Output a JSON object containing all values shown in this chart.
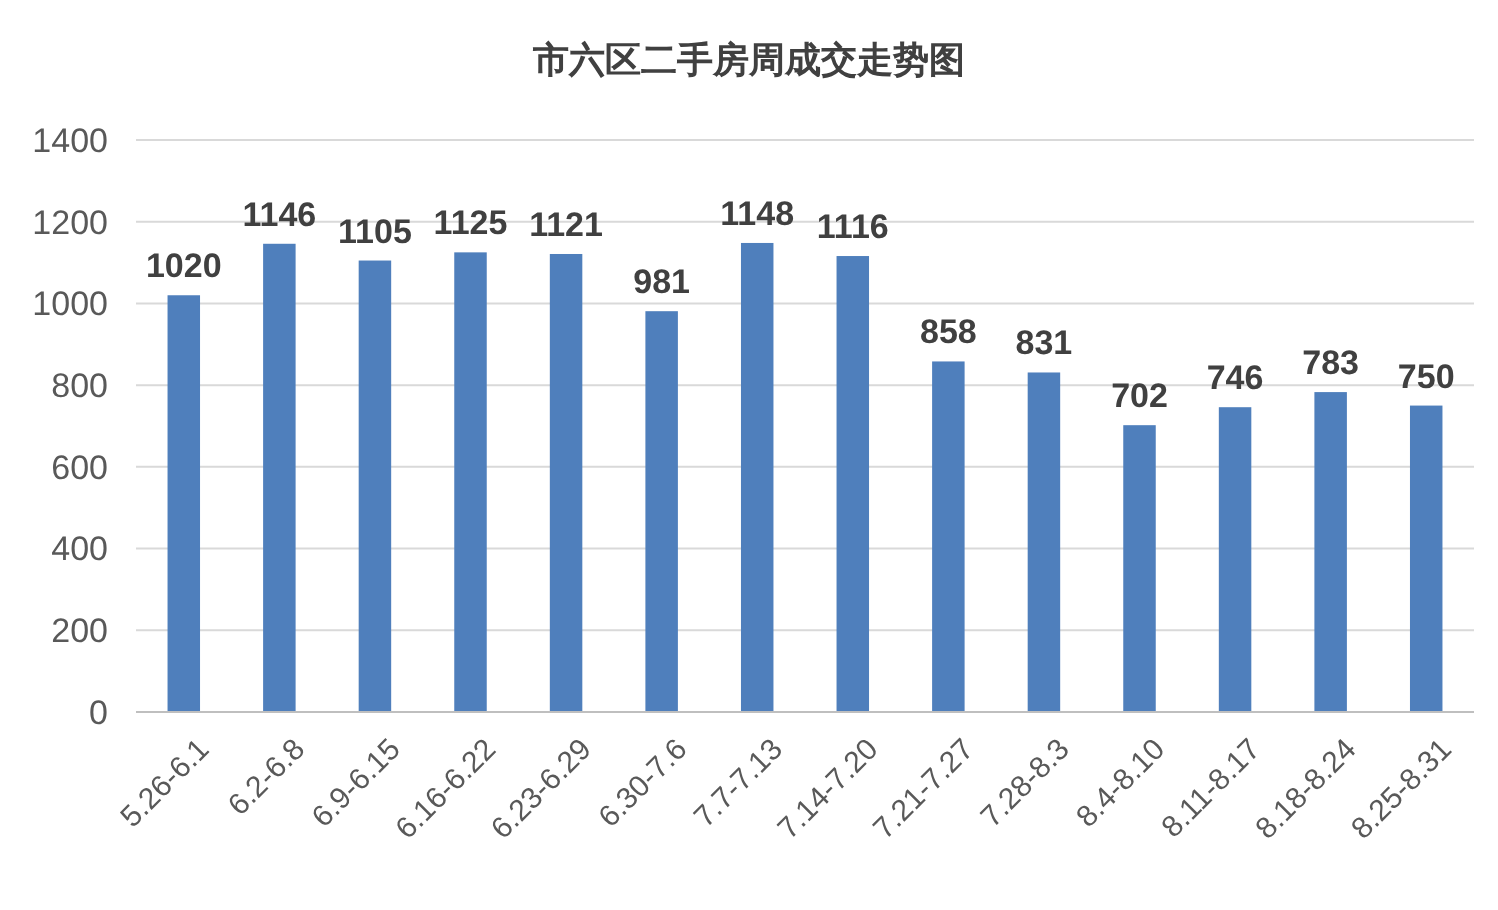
{
  "chart_data": {
    "type": "bar",
    "title": "市六区二手房周成交走势图",
    "categories": [
      "5.26-6.1",
      "6.2-6.8",
      "6.9-6.15",
      "6.16-6.22",
      "6.23-6.29",
      "6.30-7.6",
      "7.7-7.13",
      "7.14-7.20",
      "7.21-7.27",
      "7.28-8.3",
      "8.4-8.10",
      "8.11-8.17",
      "8.18-8.24",
      "8.25-8.31"
    ],
    "values": [
      1020,
      1146,
      1105,
      1125,
      1121,
      981,
      1148,
      1116,
      858,
      831,
      702,
      746,
      783,
      750
    ],
    "color": "#4f7fbc",
    "ylim": [
      0,
      1400
    ],
    "yticks": [
      0,
      200,
      400,
      600,
      800,
      1000,
      1200,
      1400
    ],
    "grid": "y",
    "data_labels": true
  }
}
